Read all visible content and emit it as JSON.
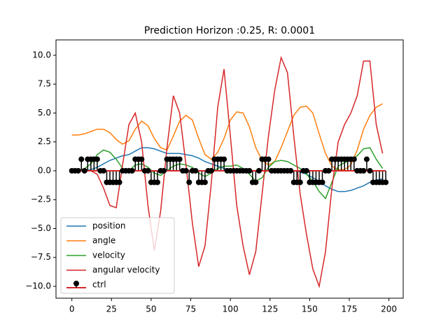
{
  "chart_data": {
    "type": "line",
    "title": "Prediction Horizon :0.25, R: 0.0001",
    "xlim": [
      -10,
      209
    ],
    "ylim": [
      -11.03,
      11.33
    ],
    "xticks": [
      0,
      25,
      50,
      75,
      100,
      125,
      150,
      175,
      200
    ],
    "yticks": [
      {
        "value": -10,
        "label": "−10.0"
      },
      {
        "value": -7.5,
        "label": "−7.5"
      },
      {
        "value": -5,
        "label": "−5.0"
      },
      {
        "value": -2.5,
        "label": "−2.5"
      },
      {
        "value": 0,
        "label": "0.0"
      },
      {
        "value": 2.5,
        "label": "2.5"
      },
      {
        "value": 5,
        "label": "5.0"
      },
      {
        "value": 7.5,
        "label": "7.5"
      },
      {
        "value": 10,
        "label": "10.0"
      }
    ],
    "legend": "lower left",
    "x": [
      0,
      4,
      8,
      12,
      16,
      20,
      24,
      28,
      32,
      36,
      40,
      44,
      48,
      52,
      56,
      60,
      64,
      68,
      72,
      76,
      80,
      84,
      88,
      92,
      96,
      100,
      104,
      108,
      112,
      116,
      120,
      124,
      128,
      132,
      136,
      140,
      144,
      148,
      152,
      156,
      160,
      164,
      168,
      172,
      176,
      180,
      184,
      188,
      192,
      196
    ],
    "series": [
      {
        "name": "position",
        "color": "#1f77b4",
        "values": [
          0,
          0,
          0,
          0.1,
          0.3,
          0.6,
          0.9,
          1.1,
          1.3,
          1.4,
          1.7,
          2.0,
          2.0,
          1.9,
          1.7,
          1.5,
          1.5,
          1.5,
          1.4,
          1.3,
          1.1,
          0.8,
          0.6,
          0.4,
          0.2,
          0.1,
          0,
          0,
          0,
          0,
          0,
          0,
          0,
          0,
          0,
          0,
          -0.1,
          -0.3,
          -0.6,
          -0.9,
          -1.3,
          -1.6,
          -1.8,
          -1.8,
          -1.7,
          -1.5,
          -1.3,
          -1.0,
          -0.8,
          -0.7
        ]
      },
      {
        "name": "angle",
        "color": "#ff7f0e",
        "values": [
          3.1,
          3.1,
          3.2,
          3.4,
          3.6,
          3.6,
          3.3,
          2.7,
          2.3,
          2.6,
          3.6,
          4.3,
          3.9,
          2.8,
          2.0,
          1.8,
          3.0,
          4.3,
          4.8,
          4.4,
          2.8,
          1.4,
          1.0,
          1.6,
          2.8,
          4.4,
          5.1,
          5.0,
          3.8,
          2.0,
          0.9,
          0.5,
          0.8,
          2.0,
          3.4,
          4.8,
          5.5,
          5.6,
          5.0,
          3.2,
          1.5,
          0.4,
          0.1,
          0.1,
          0.5,
          1.8,
          3.6,
          4.8,
          5.5,
          5.8
        ]
      },
      {
        "name": "velocity",
        "color": "#2ca02c",
        "values": [
          0,
          0,
          0.2,
          0.6,
          1.4,
          1.8,
          1.6,
          1.0,
          0.2,
          0,
          0.5,
          0.6,
          0.3,
          -0.2,
          -0.4,
          0,
          0.4,
          0.6,
          0.5,
          0.3,
          -0.2,
          -0.5,
          -0.2,
          0.2,
          0.4,
          0.4,
          0.5,
          0.2,
          -0.3,
          -0.9,
          -0.6,
          0.3,
          0.8,
          0.9,
          0.8,
          0.5,
          0.2,
          -0.3,
          -0.9,
          -1.8,
          -2.4,
          -1.0,
          0.4,
          0.7,
          0.9,
          1.3,
          1.9,
          2.0,
          1.0,
          0.2
        ]
      },
      {
        "name": "angular velocity",
        "color": "#d62728",
        "values": [
          0,
          0,
          0,
          0,
          -0.3,
          -1.5,
          -3.0,
          -3.2,
          0.5,
          4.0,
          5.0,
          2.5,
          -3.0,
          -6.9,
          -3.5,
          2.0,
          6.5,
          5.0,
          0.5,
          -4.5,
          -8.3,
          -6.5,
          -1.0,
          5.5,
          8.8,
          3.0,
          -3.0,
          -6.5,
          -9.0,
          -7.0,
          -2.0,
          3.0,
          7.0,
          9.8,
          8.5,
          3.0,
          -2.0,
          -5.5,
          -8.5,
          -10.0,
          -7.0,
          -1.5,
          2.5,
          4.0,
          5.0,
          6.5,
          9.5,
          9.5,
          4.0,
          1.5
        ]
      },
      {
        "name": "ctrl",
        "type": "stem",
        "color": "#000000",
        "baseline_color": "#d62728",
        "x": [
          0,
          2,
          4,
          6,
          8,
          10,
          12,
          14,
          16,
          18,
          20,
          22,
          24,
          26,
          28,
          30,
          32,
          34,
          36,
          38,
          40,
          42,
          44,
          46,
          48,
          50,
          52,
          54,
          56,
          58,
          60,
          62,
          64,
          66,
          68,
          70,
          72,
          74,
          76,
          78,
          80,
          82,
          84,
          86,
          88,
          90,
          92,
          94,
          96,
          98,
          100,
          102,
          104,
          106,
          108,
          110,
          112,
          114,
          116,
          118,
          120,
          122,
          124,
          126,
          128,
          130,
          132,
          134,
          136,
          138,
          140,
          142,
          144,
          146,
          148,
          150,
          152,
          154,
          156,
          158,
          160,
          162,
          164,
          166,
          168,
          170,
          172,
          174,
          176,
          178,
          180,
          182,
          184,
          186,
          188,
          190,
          192,
          194,
          196,
          198
        ],
        "values": [
          0,
          0,
          0,
          1,
          0,
          1,
          1,
          1,
          1,
          0,
          0,
          -1,
          -1,
          -1,
          -1,
          -1,
          0,
          0,
          0,
          0,
          1,
          1,
          1,
          0,
          0,
          -1,
          -1,
          -1,
          0,
          0,
          1,
          1,
          1,
          1,
          1,
          0,
          0,
          -1,
          0,
          0,
          -1,
          -1,
          -1,
          0,
          0,
          1,
          1,
          1,
          1,
          0,
          0,
          0,
          0,
          0,
          0,
          0,
          0,
          -1,
          -1,
          0,
          1,
          1,
          1,
          0,
          0,
          0,
          0,
          0,
          0,
          0,
          -1,
          -1,
          -1,
          0,
          0,
          -1,
          -1,
          -1,
          -1,
          -1,
          0,
          0,
          1,
          1,
          1,
          1,
          1,
          1,
          1,
          1,
          0,
          0,
          0,
          1,
          0,
          -1,
          -1,
          -1,
          -1,
          -1
        ]
      }
    ]
  }
}
